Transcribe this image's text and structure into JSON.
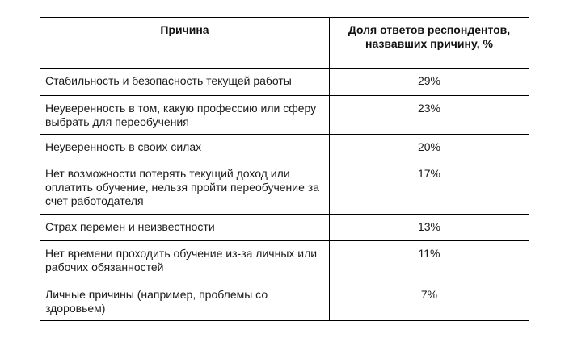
{
  "table": {
    "headers": {
      "reason": "Причина",
      "share": "Доля ответов респондентов, названных причину, %"
    },
    "rows": [
      {
        "reason": "Стабильность и безопасность текущей работы",
        "share": "29%"
      },
      {
        "reason": "Неуверенность в том, какую профессию или сферу выбрать для переобучения",
        "share": "23%"
      },
      {
        "reason": "Неуверенность в своих силах",
        "share": "20%"
      },
      {
        "reason": "Нет возможности потерять текущий доход или оплатить обучение, нельзя пройти переобучение за счет работодателя",
        "share": "17%"
      },
      {
        "reason": "Страх перемен и неизвестности",
        "share": "13%"
      },
      {
        "reason": "Нет времени проходить обучение из-за личных или рабочих обязанностей",
        "share": "11%"
      },
      {
        "reason": "Личные причины (например,  проблемы со здоровьем)",
        "share": "7%"
      }
    ]
  }
}
